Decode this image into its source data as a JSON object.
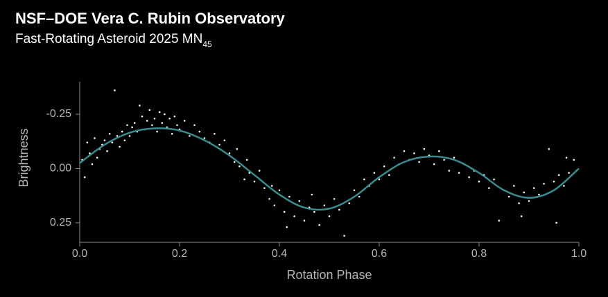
{
  "chart_data": {
    "type": "scatter",
    "title": "NSF–DOE Vera C. Rubin Observatory",
    "subtitle": "Fast-Rotating Asteroid 2025 MN",
    "subtitle_subscript": "45",
    "x_label": "Rotation Phase",
    "y_label": "Brightness",
    "xlim": [
      0,
      1
    ],
    "ylim": [
      -0.4,
      0.34
    ],
    "y_inverted": true,
    "xticks": [
      {
        "value": 0,
        "label": "0.0"
      },
      0.2,
      0.4,
      0.6,
      0.8,
      {
        "value": 1,
        "label": "1.0"
      }
    ],
    "yticks": [
      -0.25,
      {
        "value": 0,
        "label": "0.00"
      },
      0.25
    ],
    "points": {
      "color": "#ffffff",
      "x": [
        0.005,
        0.01,
        0.015,
        0.02,
        0.025,
        0.03,
        0.035,
        0.04,
        0.045,
        0.05,
        0.055,
        0.06,
        0.065,
        0.07,
        0.075,
        0.08,
        0.085,
        0.09,
        0.095,
        0.1,
        0.105,
        0.11,
        0.115,
        0.12,
        0.125,
        0.13,
        0.135,
        0.14,
        0.145,
        0.15,
        0.155,
        0.16,
        0.165,
        0.17,
        0.175,
        0.18,
        0.185,
        0.19,
        0.195,
        0.2,
        0.21,
        0.22,
        0.23,
        0.24,
        0.25,
        0.26,
        0.27,
        0.28,
        0.29,
        0.3,
        0.31,
        0.315,
        0.32,
        0.33,
        0.335,
        0.34,
        0.35,
        0.36,
        0.37,
        0.38,
        0.385,
        0.39,
        0.4,
        0.41,
        0.415,
        0.42,
        0.43,
        0.44,
        0.45,
        0.46,
        0.465,
        0.47,
        0.48,
        0.49,
        0.5,
        0.51,
        0.52,
        0.53,
        0.54,
        0.55,
        0.56,
        0.57,
        0.58,
        0.59,
        0.6,
        0.61,
        0.62,
        0.63,
        0.64,
        0.65,
        0.66,
        0.67,
        0.68,
        0.69,
        0.7,
        0.71,
        0.72,
        0.73,
        0.74,
        0.75,
        0.76,
        0.77,
        0.78,
        0.79,
        0.8,
        0.81,
        0.82,
        0.83,
        0.84,
        0.85,
        0.86,
        0.87,
        0.88,
        0.885,
        0.89,
        0.9,
        0.91,
        0.92,
        0.93,
        0.94,
        0.95,
        0.955,
        0.96,
        0.97,
        0.975,
        0.98,
        0.99,
        0.995
      ],
      "y": [
        -0.04,
        0.04,
        -0.12,
        -0.07,
        -0.02,
        -0.14,
        -0.05,
        -0.09,
        -0.11,
        -0.13,
        -0.08,
        -0.16,
        -0.12,
        -0.36,
        -0.15,
        -0.1,
        -0.17,
        -0.13,
        -0.2,
        -0.15,
        -0.19,
        -0.21,
        -0.17,
        -0.29,
        -0.24,
        -0.18,
        -0.22,
        -0.27,
        -0.2,
        -0.23,
        -0.17,
        -0.26,
        -0.21,
        -0.25,
        -0.19,
        -0.23,
        -0.16,
        -0.24,
        -0.2,
        -0.18,
        -0.22,
        -0.15,
        -0.2,
        -0.17,
        -0.14,
        -0.12,
        -0.16,
        -0.11,
        -0.13,
        -0.07,
        -0.03,
        -0.09,
        -0.01,
        0.05,
        -0.04,
        0.02,
        0.06,
        0.01,
        0.09,
        0.14,
        0.08,
        0.17,
        0.1,
        0.2,
        0.27,
        0.13,
        0.22,
        0.15,
        0.24,
        0.18,
        0.12,
        0.2,
        0.26,
        0.17,
        0.22,
        0.14,
        0.19,
        0.31,
        0.16,
        0.1,
        0.13,
        0.05,
        0.08,
        0.02,
        0.05,
        -0.01,
        0.03,
        -0.05,
        -0.02,
        -0.08,
        -0.04,
        -0.07,
        -0.03,
        -0.09,
        -0.06,
        -0.02,
        -0.08,
        -0.04,
        0.01,
        -0.05,
        0.02,
        -0.02,
        0.04,
        0.01,
        0.06,
        0.03,
        0.09,
        0.05,
        0.24,
        0.1,
        0.13,
        0.08,
        0.16,
        0.22,
        0.11,
        0.15,
        0.09,
        0.12,
        0.07,
        -0.09,
        0.06,
        0.25,
        0.03,
        0.08,
        -0.05,
        0.02,
        -0.04,
        0.01
      ]
    },
    "fit": {
      "color": "#3a8c8f",
      "x": [
        0,
        0.05,
        0.1,
        0.15,
        0.2,
        0.25,
        0.3,
        0.35,
        0.4,
        0.45,
        0.5,
        0.55,
        0.6,
        0.65,
        0.7,
        0.75,
        0.8,
        0.85,
        0.9,
        0.95,
        1
      ],
      "y": [
        -0.025,
        -0.11,
        -0.165,
        -0.185,
        -0.175,
        -0.13,
        -0.06,
        0.03,
        0.12,
        0.18,
        0.185,
        0.13,
        0.04,
        -0.03,
        -0.055,
        -0.04,
        0.02,
        0.1,
        0.135,
        0.1,
        0
      ]
    }
  }
}
